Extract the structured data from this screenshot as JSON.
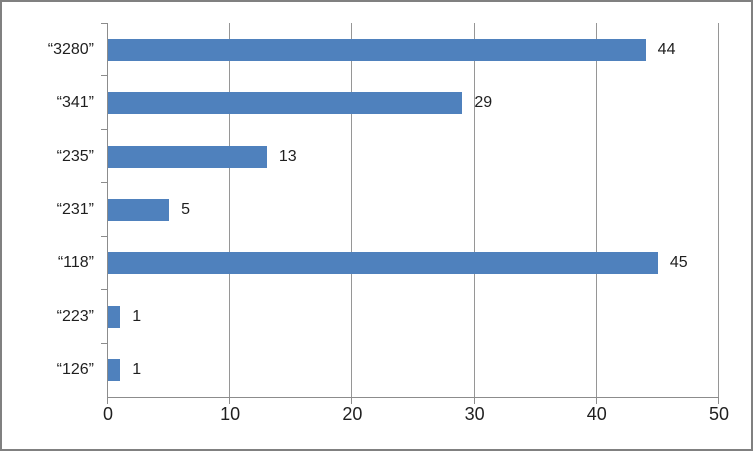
{
  "chart_data": {
    "type": "bar",
    "orientation": "horizontal",
    "title": "",
    "xlabel": "",
    "ylabel": "",
    "categories": [
      "“3280”",
      "“341”",
      "“235”",
      "“231”",
      "“118”",
      "“223”",
      "“126”"
    ],
    "values": [
      44,
      29,
      13,
      5,
      45,
      1,
      1
    ],
    "data_labels": [
      44,
      29,
      13,
      5,
      45,
      1,
      1
    ],
    "xlim": [
      0,
      50
    ],
    "x_ticks": [
      0,
      10,
      20,
      30,
      40,
      50
    ],
    "grid": "vertical-major-on",
    "legend": "none",
    "colors": {
      "bar": "#4F81BD",
      "gridline": "#969696",
      "axis": "#8C8C8C",
      "text": "#1F1F1F",
      "background": "#FFFFFF",
      "frame_border": "#808080"
    }
  }
}
